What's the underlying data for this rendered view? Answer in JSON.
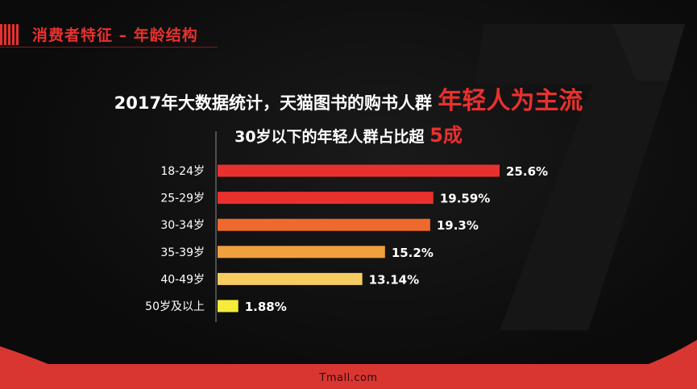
{
  "header": {
    "title": "消费者特征 – 年龄结构"
  },
  "headline": {
    "text": "2017年大数据统计，天猫图书的购书人群",
    "highlight": "年轻人为主流"
  },
  "subheadline": {
    "text": "30岁以下的年轻人群占比超",
    "highlight": "5成"
  },
  "footer": {
    "brand": "Tmall.com"
  },
  "colors": {
    "accent": "#e8312f",
    "background": "#0b0b0b"
  },
  "chart_data": {
    "type": "bar",
    "orientation": "horizontal",
    "categories": [
      "18-24岁",
      "25-29岁",
      "30-34岁",
      "35-39岁",
      "40-49岁",
      "50岁及以上"
    ],
    "values": [
      25.6,
      19.59,
      19.3,
      15.2,
      13.14,
      1.88
    ],
    "value_labels": [
      "25.6%",
      "19.59%",
      "19.3%",
      "15.2%",
      "13.14%",
      "1.88%"
    ],
    "bar_colors": [
      "#e8312f",
      "#e8312f",
      "#ee6a2c",
      "#f0a03c",
      "#f6cc62",
      "#f5ec3a"
    ],
    "xlim": [
      0,
      25.6
    ],
    "grid": false,
    "legend": "none"
  }
}
